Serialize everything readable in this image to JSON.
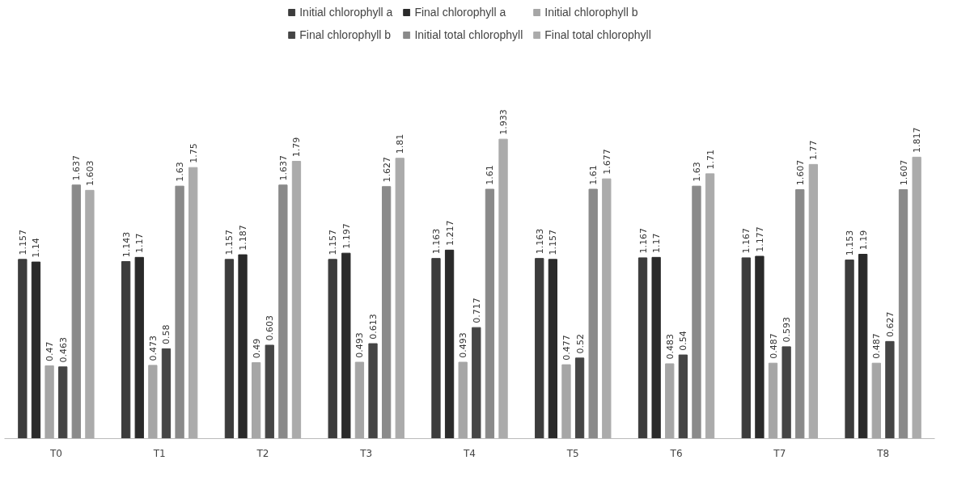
{
  "chart_data": {
    "type": "bar",
    "categories": [
      "T0",
      "T1",
      "T2",
      "T3",
      "T4",
      "T5",
      "T6",
      "T7",
      "T8"
    ],
    "series": [
      {
        "name": "Initial chlorophyll a",
        "color": "#3c3c3c",
        "values": [
          1.157,
          1.143,
          1.157,
          1.157,
          1.163,
          1.163,
          1.167,
          1.167,
          1.153
        ]
      },
      {
        "name": "Final chlorophyll a",
        "color": "#2a2a2a",
        "values": [
          1.14,
          1.17,
          1.187,
          1.197,
          1.217,
          1.157,
          1.17,
          1.177,
          1.19
        ]
      },
      {
        "name": "Initial chlorophyll b",
        "color": "#a6a6a6",
        "values": [
          0.47,
          0.473,
          0.49,
          0.493,
          0.493,
          0.477,
          0.483,
          0.487,
          0.487
        ]
      },
      {
        "name": "Final chlorophyll b",
        "color": "#454545",
        "values": [
          0.463,
          0.58,
          0.603,
          0.613,
          0.717,
          0.52,
          0.54,
          0.593,
          0.627
        ]
      },
      {
        "name": "Initial total chlorophyll",
        "color": "#8a8a8a",
        "values": [
          1.637,
          1.63,
          1.637,
          1.627,
          1.61,
          1.61,
          1.63,
          1.607,
          1.607
        ]
      },
      {
        "name": "Final total chlorophyll",
        "color": "#ababab",
        "values": [
          1.603,
          1.75,
          1.79,
          1.81,
          1.933,
          1.677,
          1.71,
          1.77,
          1.817
        ]
      }
    ],
    "data_labels": true,
    "legend": "top",
    "grid": false
  }
}
